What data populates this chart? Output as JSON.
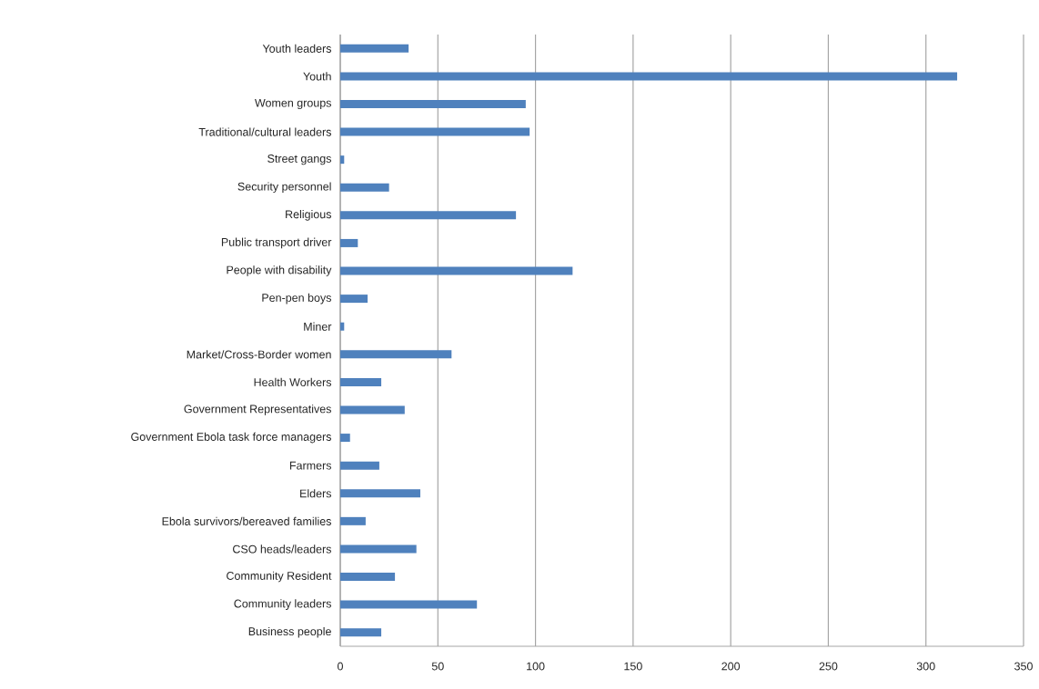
{
  "chart_data": {
    "type": "bar",
    "orientation": "horizontal",
    "categories": [
      "Youth leaders",
      "Youth",
      "Women groups",
      "Traditional/cultural leaders",
      "Street gangs",
      "Security personnel",
      "Religious",
      "Public transport driver",
      "People with disability",
      "Pen-pen boys",
      "Miner",
      "Market/Cross-Border women",
      "Health Workers",
      "Government Representatives",
      "Government Ebola task force  managers",
      "Farmers",
      "Elders",
      "Ebola survivors/bereaved families",
      "CSO heads/leaders",
      "Community Resident",
      "Community leaders",
      "Business people"
    ],
    "values": [
      35,
      316,
      95,
      97,
      2,
      25,
      90,
      9,
      119,
      14,
      2,
      57,
      21,
      33,
      5,
      20,
      41,
      13,
      39,
      28,
      70,
      21
    ],
    "color": "#4f81bd",
    "xlim": [
      0,
      350
    ],
    "xticks": [
      0,
      50,
      100,
      150,
      200,
      250,
      300,
      350
    ],
    "grid": "x"
  }
}
